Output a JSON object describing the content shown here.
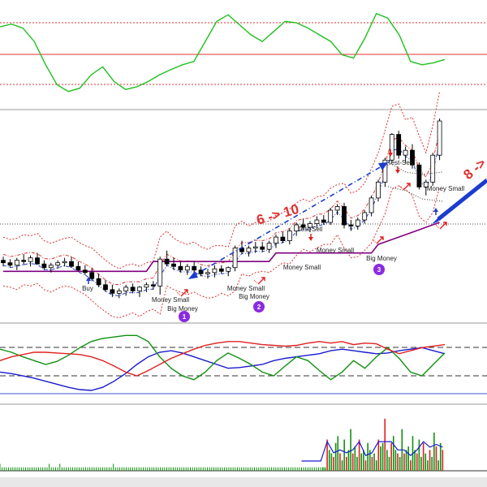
{
  "chart_data": [
    {
      "type": "line",
      "panel": "oscillator",
      "series": [
        {
          "values": [
            52,
            56,
            50,
            30,
            -5,
            -35,
            -45,
            -40,
            -20,
            -8,
            -30,
            -42,
            -38,
            -30,
            -20,
            -12,
            -5,
            0,
            30,
            60,
            70,
            55,
            40,
            30,
            45,
            60,
            58,
            50,
            40,
            30,
            10,
            5,
            35,
            72,
            65,
            40,
            0,
            -5,
            -2,
            3
          ]
        }
      ],
      "ylim": [
        -60,
        80
      ]
    },
    {
      "type": "bar",
      "panel": "price",
      "candles": [
        [
          20,
          20.3,
          19.5,
          19.8
        ],
        [
          19.8,
          20.1,
          19.4,
          19.6
        ],
        [
          19.6,
          20.2,
          19.2,
          20.0
        ],
        [
          20.0,
          20.5,
          19.6,
          19.9
        ],
        [
          19.9,
          20.4,
          19.5,
          20.2
        ],
        [
          20.2,
          20.6,
          19.8,
          19.7
        ],
        [
          19.7,
          20.0,
          19.2,
          19.4
        ],
        [
          19.4,
          19.8,
          19.0,
          19.6
        ],
        [
          19.6,
          20.0,
          19.3,
          19.8
        ],
        [
          19.8,
          20.2,
          19.5,
          19.9
        ],
        [
          19.9,
          20.3,
          19.4,
          19.5
        ],
        [
          19.5,
          19.9,
          19.1,
          19.2
        ],
        [
          19.2,
          19.6,
          18.8,
          19.0
        ],
        [
          19.0,
          19.4,
          18.3,
          18.5
        ],
        [
          18.5,
          18.9,
          17.8,
          18.0
        ],
        [
          18.0,
          18.4,
          17.4,
          17.6
        ],
        [
          17.6,
          18.0,
          17.0,
          17.3
        ],
        [
          17.3,
          17.7,
          16.9,
          17.5
        ],
        [
          17.5,
          18.0,
          17.1,
          17.8
        ],
        [
          17.8,
          18.1,
          17.3,
          17.5
        ],
        [
          17.5,
          17.9,
          17.0,
          17.8
        ],
        [
          17.8,
          18.2,
          17.4,
          18.0
        ],
        [
          18.0,
          18.3,
          17.6,
          17.9
        ],
        [
          17.9,
          20.3,
          17.2,
          20.1
        ],
        [
          20.1,
          20.8,
          19.5,
          19.7
        ],
        [
          19.7,
          20.2,
          19.2,
          19.5
        ],
        [
          19.5,
          19.9,
          19.0,
          19.2
        ],
        [
          19.2,
          19.7,
          18.8,
          19.5
        ],
        [
          19.5,
          19.9,
          19.0,
          19.2
        ],
        [
          19.2,
          19.5,
          18.7,
          18.9
        ],
        [
          18.9,
          19.3,
          18.5,
          19.0
        ],
        [
          19.0,
          19.6,
          18.6,
          19.3
        ],
        [
          19.3,
          19.6,
          18.9,
          19.1
        ],
        [
          19.1,
          19.5,
          18.7,
          19.4
        ],
        [
          19.4,
          21.2,
          19.1,
          21.0
        ],
        [
          21.0,
          21.6,
          20.5,
          20.7
        ],
        [
          20.7,
          21.2,
          20.3,
          21.0
        ],
        [
          21.0,
          21.5,
          20.6,
          21.1
        ],
        [
          21.1,
          21.5,
          20.7,
          20.9
        ],
        [
          20.9,
          21.6,
          20.6,
          21.4
        ],
        [
          21.4,
          22.1,
          21.0,
          21.9
        ],
        [
          21.9,
          22.3,
          21.4,
          21.6
        ],
        [
          21.6,
          22.6,
          21.3,
          22.4
        ],
        [
          22.4,
          23.1,
          22.0,
          22.9
        ],
        [
          22.9,
          23.4,
          22.5,
          22.7
        ],
        [
          22.7,
          23.2,
          22.3,
          23.0
        ],
        [
          23.0,
          23.6,
          22.6,
          23.3
        ],
        [
          23.3,
          23.7,
          22.9,
          23.1
        ],
        [
          23.1,
          24.3,
          22.9,
          24.1
        ],
        [
          24.1,
          24.6,
          23.7,
          24.4
        ],
        [
          24.4,
          24.7,
          22.6,
          22.9
        ],
        [
          22.9,
          23.3,
          22.4,
          22.8
        ],
        [
          22.8,
          23.5,
          22.5,
          23.3
        ],
        [
          23.3,
          24.1,
          23.0,
          23.9
        ],
        [
          23.9,
          25.3,
          23.6,
          25.1
        ],
        [
          25.1,
          26.6,
          24.8,
          26.4
        ],
        [
          26.4,
          28.4,
          26.0,
          28.2
        ],
        [
          28.2,
          30.4,
          28.0,
          30.3
        ],
        [
          30.3,
          30.6,
          28.3,
          28.6
        ],
        [
          28.6,
          29.3,
          28.0,
          29.0
        ],
        [
          29.0,
          29.5,
          27.5,
          27.8
        ],
        [
          27.8,
          28.0,
          25.8,
          26.0
        ],
        [
          26.0,
          26.6,
          25.3,
          26.4
        ],
        [
          26.4,
          28.8,
          26.1,
          28.6
        ],
        [
          28.6,
          31.6,
          28.2,
          31.4
        ]
      ],
      "labels": [
        "Buy",
        "Money Small",
        "Big Money",
        "Money Small",
        "Big Money",
        "Money Small",
        "Test-Sell",
        "Money Small",
        "Big Money",
        "Test-Sell",
        "Money Small"
      ],
      "annotations": [
        "6 -> 10",
        "8 ->"
      ],
      "badges": [
        "1",
        "2",
        "3"
      ],
      "colors": {
        "support_line": "#800080",
        "upper_band": "#e03030",
        "lower_band": "#e03030",
        "mid_band": "#e03030",
        "arrow": "#1a3ccf",
        "bull": "#ffffff",
        "bear": "#000000"
      },
      "ylim": [
        15,
        32
      ]
    },
    {
      "type": "line",
      "panel": "dmi",
      "series": [
        {
          "color": "#1a1acf",
          "values": [
            40,
            38,
            35,
            32,
            28,
            24,
            20,
            17,
            16,
            20,
            28,
            38,
            50,
            60,
            66,
            68,
            65,
            60,
            55,
            50,
            45,
            46,
            48,
            50,
            55,
            58,
            60,
            62,
            64,
            68,
            70,
            68,
            66,
            64,
            65,
            68,
            70,
            72,
            68,
            64
          ]
        },
        {
          "color": "#109010",
          "values": [
            70,
            66,
            60,
            55,
            50,
            54,
            62,
            72,
            80,
            84,
            86,
            88,
            88,
            80,
            60,
            45,
            35,
            30,
            40,
            55,
            65,
            58,
            50,
            40,
            35,
            48,
            60,
            55,
            42,
            30,
            40,
            55,
            45,
            60,
            72,
            58,
            40,
            35,
            50,
            65
          ]
        },
        {
          "color": "#e02020",
          "values": [
            55,
            60,
            63,
            66,
            66,
            65,
            64,
            63,
            60,
            55,
            48,
            40,
            35,
            42,
            50,
            58,
            64,
            70,
            75,
            78,
            80,
            80,
            78,
            76,
            75,
            74,
            75,
            78,
            80,
            78,
            80,
            76,
            78,
            77,
            70,
            64,
            68,
            72,
            74,
            76
          ]
        }
      ],
      "ylim": [
        0,
        100
      ]
    },
    {
      "type": "bar",
      "panel": "volume",
      "values": [
        2,
        1,
        1,
        1,
        1,
        1,
        1,
        1,
        1,
        1,
        1,
        1,
        1,
        1,
        1,
        1,
        1,
        1,
        1,
        1,
        1,
        1,
        1,
        2,
        1,
        1,
        1,
        1,
        2,
        1,
        1,
        1,
        1,
        1,
        1,
        1,
        1,
        1,
        1,
        1,
        1,
        1,
        1,
        1,
        1,
        1,
        1,
        1,
        1,
        1,
        1,
        1,
        1,
        2,
        1,
        1,
        1,
        1,
        1,
        1,
        1,
        1,
        1,
        1,
        1,
        1,
        1,
        1,
        1,
        1,
        1,
        1,
        1,
        1,
        1,
        1,
        1,
        1,
        1,
        1,
        1,
        1,
        1,
        1,
        1,
        1,
        1,
        1,
        1,
        1,
        1,
        1,
        1,
        1,
        1,
        1,
        1,
        1,
        1,
        1,
        1,
        1,
        1,
        1,
        1,
        1,
        1,
        1,
        1,
        1,
        1,
        1,
        1,
        1,
        1,
        1,
        1,
        1,
        1,
        1,
        1,
        1,
        1,
        1,
        1,
        1,
        1,
        1,
        1,
        1,
        1,
        1,
        1,
        1,
        1,
        1,
        1,
        1,
        1,
        1,
        1,
        1,
        1,
        1,
        1,
        1,
        1,
        1,
        1,
        1,
        1,
        1,
        1,
        9,
        6,
        5,
        4,
        8,
        10,
        5,
        3,
        9,
        4,
        6,
        12,
        5,
        7,
        4,
        9,
        5,
        6,
        3,
        8,
        6,
        4,
        5,
        3,
        9,
        7,
        8,
        15,
        6,
        4,
        8,
        10,
        6,
        5,
        4,
        12,
        5,
        6,
        7,
        3,
        10,
        6,
        5,
        9,
        4,
        8,
        5,
        3,
        6,
        4,
        11,
        7,
        3,
        8,
        6
      ],
      "ylim": [
        0,
        18
      ]
    }
  ],
  "icons": {
    "up_arrow": "blue-up-arrow-icon",
    "down_arrow": "red-down-arrow-icon",
    "buy_signal": "red-buy-signal-icon"
  }
}
